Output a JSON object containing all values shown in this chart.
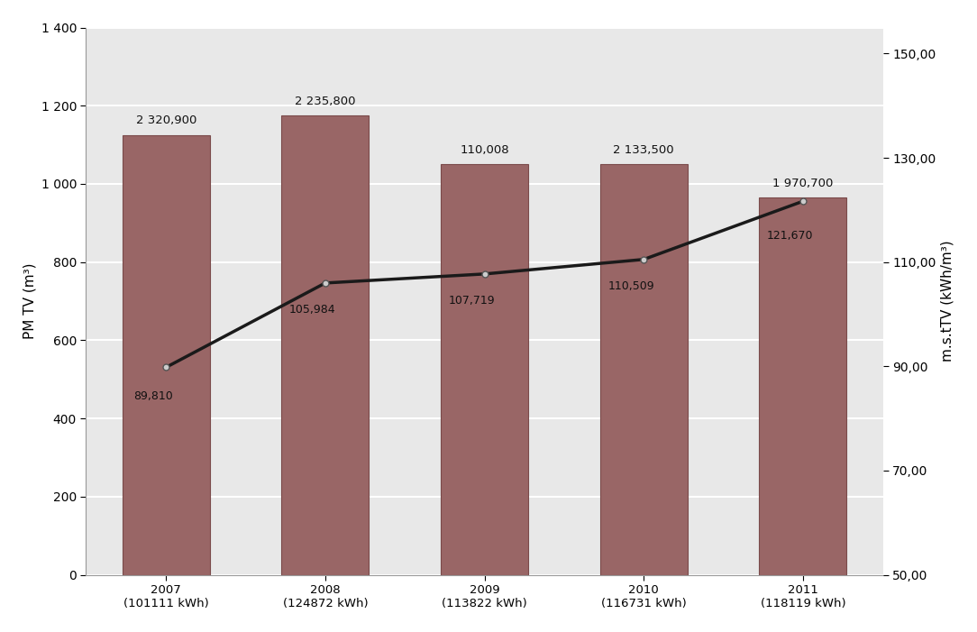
{
  "years": [
    "2007\n(101111 kWh)",
    "2008\n(124872 kWh)",
    "2009\n(113822 kWh)",
    "2010\n(116731 kWh)",
    "2011\n(118119 kWh)"
  ],
  "bar_values": [
    1125,
    1175,
    1050,
    1050,
    965
  ],
  "bar_labels": [
    "2 320,900",
    "2 235,800",
    "110,008",
    "2 133,500",
    "1 970,700"
  ],
  "line_values": [
    89.81,
    105.984,
    107.719,
    110.509,
    121.67
  ],
  "line_labels": [
    "89,810",
    "105,984",
    "107,719",
    "110,509",
    "121,670"
  ],
  "bar_color": "#996666",
  "bar_edgecolor": "#7a4a4a",
  "line_color": "#1a1a1a",
  "left_ylabel": "PM TV (m³)",
  "right_ylabel": "m.s.tTV (kWh/m³)",
  "left_ylim": [
    0,
    1400
  ],
  "left_yticks": [
    0,
    200,
    400,
    600,
    800,
    1000,
    1200,
    1400
  ],
  "right_ylim": [
    50,
    155
  ],
  "right_yticks": [
    50.0,
    70.0,
    90.0,
    110.0,
    130.0,
    150.0
  ],
  "background_color": "#ffffff",
  "plot_background": "#ffffff",
  "plot_area_color": "#e8e8e8",
  "grid_color": "#ffffff",
  "figsize": [
    10.84,
    7.01
  ],
  "dpi": 100,
  "left_ytick_labels": [
    "0",
    "200",
    "400",
    "600",
    "800",
    "1 000",
    "1 200",
    "1 400"
  ]
}
